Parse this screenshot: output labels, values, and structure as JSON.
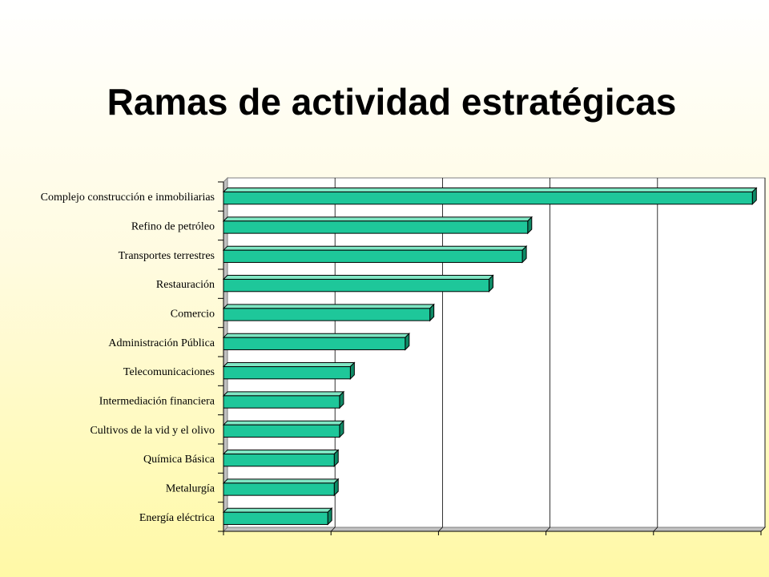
{
  "slide": {
    "title": "Ramas de actividad estratégicas"
  },
  "chart_data": {
    "type": "bar",
    "orientation": "horizontal",
    "style": "3d",
    "title": "Ramas de actividad estratégicas",
    "xlabel": "",
    "ylabel": "",
    "categories": [
      "Complejo construcción e inmobiliarias",
      "Refino de petróleo",
      "Transportes terrestres",
      "Restauración",
      "Comercio",
      "Administración Pública",
      "Telecomunicaciones",
      "Intermediación financiera",
      "Cultivos de la vid y el olivo",
      "Química Básica",
      "Metalurgía",
      "Energía eléctrica"
    ],
    "values": [
      4.92,
      2.83,
      2.78,
      2.47,
      1.92,
      1.69,
      1.18,
      1.08,
      1.08,
      1.03,
      1.03,
      0.97
    ],
    "xlim": [
      0,
      5
    ],
    "tick_labels_shown": false,
    "grid": true,
    "legend": "none",
    "colors": {
      "bar_front": "#1ec79a",
      "bar_top": "#7fe6c4",
      "bar_side": "#0e8a66",
      "edge": "#000000",
      "plot_bg": "#ffffff",
      "grid": "#000000"
    }
  }
}
